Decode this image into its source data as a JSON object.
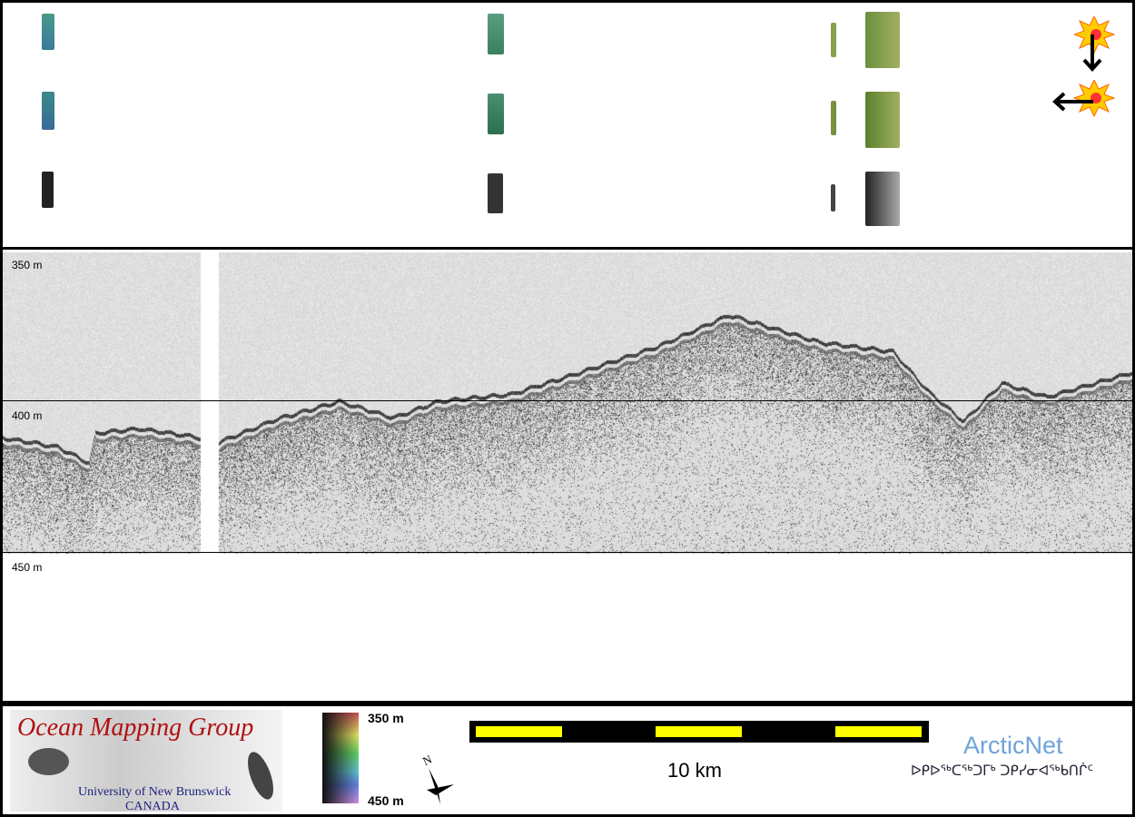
{
  "depth_labels": {
    "top": "350 m",
    "mid": "400 m",
    "bottom": "450 m"
  },
  "legend": {
    "colorbar_top": "350 m",
    "colorbar_bottom": "450 m",
    "north_label": "N"
  },
  "scale_bar": {
    "label": "10 km",
    "colors": [
      "#ffff00",
      "#000000"
    ]
  },
  "logos": {
    "omg_title": "Ocean Mapping Group",
    "omg_sub1": "University of New Brunswick",
    "omg_sub2": "CANADA",
    "arcticnet": "ArcticNet",
    "arcticnet_syllabics": "ᐅᑭᐅᖅᑕᖅᑐᒥᒃ ᑐᑭᓯᓂᐊᖅᑲᑎᒌᑦ"
  },
  "icons": [
    "sun-illumination-icon-down",
    "sun-illumination-icon-left"
  ]
}
